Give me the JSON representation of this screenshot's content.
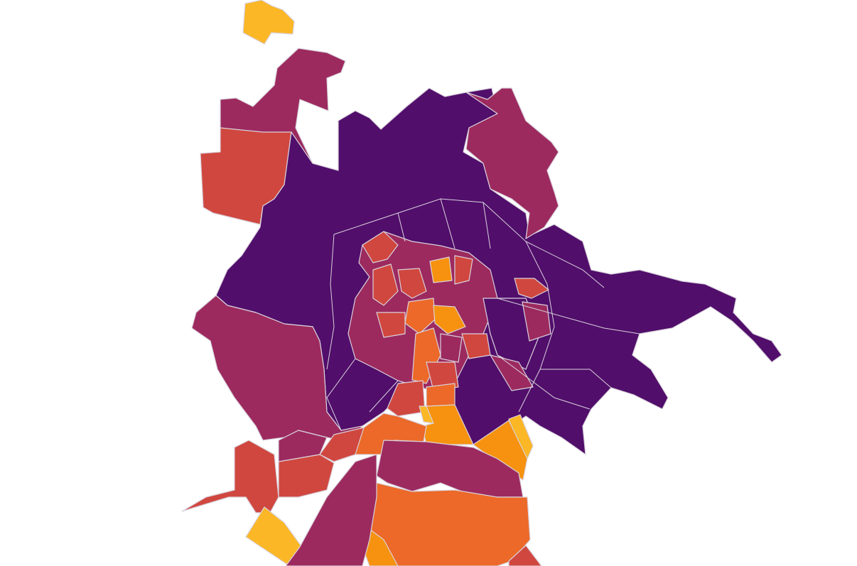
{
  "map": {
    "type": "choropleth",
    "background": "#ffffff",
    "border_color": "#d9d2dc",
    "palette": {
      "c0": "#510e6b",
      "c1": "#9c2a5f",
      "c2": "#d0473f",
      "c3": "#ec6929",
      "c4": "#f6920f",
      "c5": "#fbb725"
    }
  }
}
